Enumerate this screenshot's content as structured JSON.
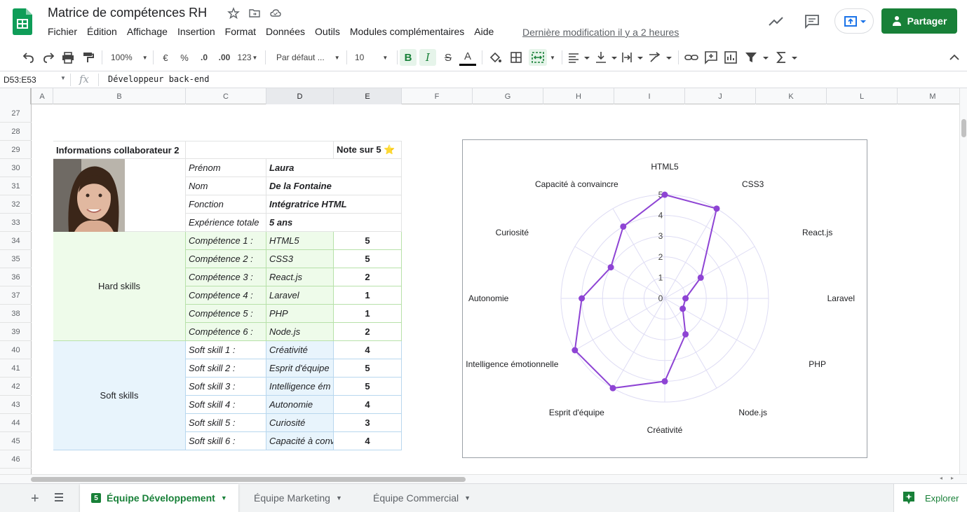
{
  "window": {
    "doc_title": "Matrice de compétences RH",
    "menus": [
      "Fichier",
      "Édition",
      "Affichage",
      "Insertion",
      "Format",
      "Données",
      "Outils",
      "Modules complémentaires",
      "Aide"
    ],
    "last_edit": "Dernière modification il y a 2 heures",
    "share_label": "Partager"
  },
  "toolbar": {
    "zoom": "100%",
    "currency": "€",
    "percent": "%",
    "decimal_less": ".0",
    "decimal_more": ".00",
    "number_format": "123",
    "font": "Par défaut ...",
    "font_size": "10",
    "bold": "B",
    "italic": "I",
    "strike": "S",
    "text_color": "A"
  },
  "formula_bar": {
    "namebox": "D53:E53",
    "fx": "fx",
    "value": "Développeur back-end"
  },
  "columns": [
    "A",
    "B",
    "C",
    "D",
    "E",
    "F",
    "G",
    "H",
    "I",
    "J",
    "K",
    "L",
    "M"
  ],
  "rows": [
    "27",
    "28",
    "29",
    "30",
    "31",
    "32",
    "33",
    "34",
    "35",
    "36",
    "37",
    "38",
    "39",
    "40",
    "41",
    "42",
    "43",
    "44",
    "45",
    "46"
  ],
  "sheet": {
    "header_left": "Informations collaborateur 2",
    "header_right": "Note sur 5 ⭐",
    "info": [
      {
        "label": "Prénom",
        "value": "Laura"
      },
      {
        "label": "Nom",
        "value": "De la Fontaine"
      },
      {
        "label": "Fonction",
        "value": "Intégratrice HTML"
      },
      {
        "label": "Expérience totale",
        "value": "5 ans"
      }
    ],
    "hard_skills_label": "Hard skills",
    "hard_skills": [
      {
        "label": "Compétence 1 :",
        "name": "HTML5",
        "score": "5"
      },
      {
        "label": "Compétence 2 :",
        "name": "CSS3",
        "score": "5"
      },
      {
        "label": "Compétence 3 :",
        "name": "React.js",
        "score": "2"
      },
      {
        "label": "Compétence 4 :",
        "name": "Laravel",
        "score": "1"
      },
      {
        "label": "Compétence 5 :",
        "name": "PHP",
        "score": "1"
      },
      {
        "label": "Compétence 6 :",
        "name": "Node.js",
        "score": "2"
      }
    ],
    "soft_skills_label": "Soft skills",
    "soft_skills": [
      {
        "label": "Soft skill 1 :",
        "name": "Créativité",
        "score": "4"
      },
      {
        "label": "Soft skill 2 :",
        "name": "Esprit d'équipe",
        "score": "5"
      },
      {
        "label": "Soft skill 3 :",
        "name": "Intelligence ém",
        "score": "5"
      },
      {
        "label": "Soft skill 4 :",
        "name": "Autonomie",
        "score": "4"
      },
      {
        "label": "Soft skill 5 :",
        "name": "Curiosité",
        "score": "3"
      },
      {
        "label": "Soft skill 6 :",
        "name": "Capacité à conv",
        "score": "4"
      }
    ]
  },
  "chart_data": {
    "type": "radar",
    "categories": [
      "HTML5",
      "CSS3",
      "React.js",
      "Laravel",
      "PHP",
      "Node.js",
      "Créativité",
      "Esprit d'équipe",
      "Intelligence émotionnelle",
      "Autonomie",
      "Curiosité",
      "Capacité à convaincre"
    ],
    "values": [
      5,
      5,
      2,
      1,
      1,
      2,
      4,
      5,
      5,
      4,
      3,
      4
    ],
    "rlim": [
      0,
      5
    ],
    "ticks": [
      "0",
      "1",
      "2",
      "3",
      "4",
      "5"
    ],
    "color": "#8e44d4",
    "grid": true
  },
  "tabs": [
    {
      "label": "Équipe Développement",
      "badge": "5",
      "active": true
    },
    {
      "label": "Équipe Marketing",
      "active": false
    },
    {
      "label": "Équipe Commercial",
      "active": false
    }
  ],
  "explore_label": "Explorer",
  "colors": {
    "accent": "#188038",
    "series": "#8e44d4"
  }
}
